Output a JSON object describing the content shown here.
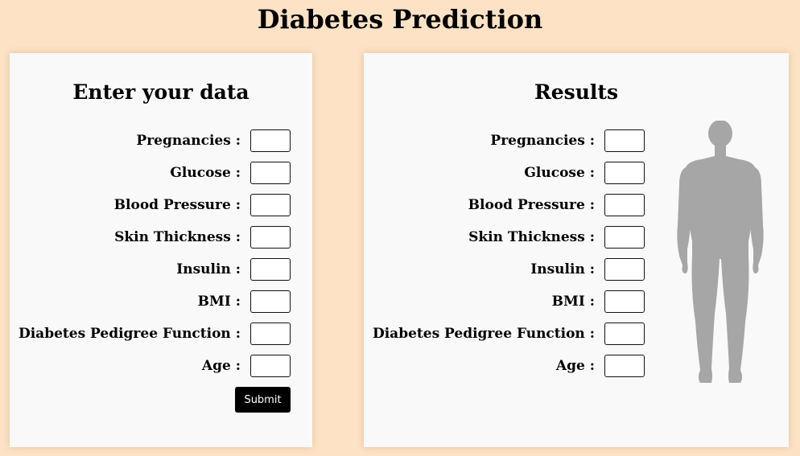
{
  "page": {
    "title": "Diabetes Prediction"
  },
  "input_panel": {
    "title": "Enter your data",
    "fields": [
      {
        "label": "Pregnancies :",
        "value": ""
      },
      {
        "label": "Glucose :",
        "value": ""
      },
      {
        "label": "Blood Pressure :",
        "value": ""
      },
      {
        "label": "Skin Thickness :",
        "value": ""
      },
      {
        "label": "Insulin :",
        "value": ""
      },
      {
        "label": "BMI :",
        "value": ""
      },
      {
        "label": "Diabetes Pedigree Function :",
        "value": ""
      },
      {
        "label": "Age :",
        "value": ""
      }
    ],
    "submit_label": "Submit"
  },
  "results_panel": {
    "title": "Results",
    "fields": [
      {
        "label": "Pregnancies :",
        "value": ""
      },
      {
        "label": "Glucose :",
        "value": ""
      },
      {
        "label": "Blood Pressure :",
        "value": ""
      },
      {
        "label": "Skin Thickness :",
        "value": ""
      },
      {
        "label": "Insulin :",
        "value": ""
      },
      {
        "label": "BMI :",
        "value": ""
      },
      {
        "label": "Diabetes Pedigree Function :",
        "value": ""
      },
      {
        "label": "Age :",
        "value": ""
      }
    ],
    "figure_icon": "human-body-silhouette-icon"
  },
  "colors": {
    "background": "#fde2c5",
    "panel": "#f9f9f9",
    "button": "#000000",
    "figure": "#a6a6a6"
  }
}
